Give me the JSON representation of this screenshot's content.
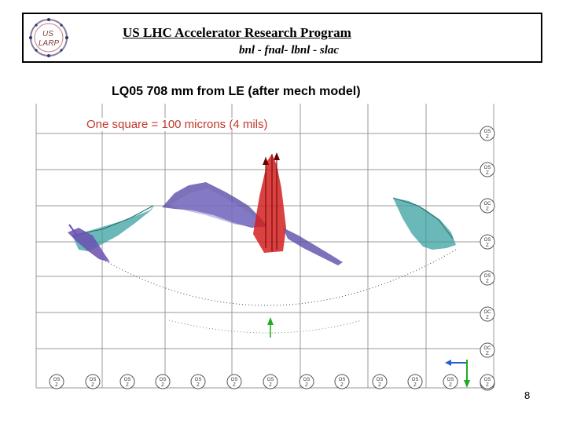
{
  "header": {
    "title": "US LHC Accelerator Research Program",
    "subtitle": "bnl - fnal- lbnl - slac",
    "logo_text_top": "US",
    "logo_text_bottom": "LARP"
  },
  "slide": {
    "title": "LQ05  708 mm from LE (after mech model)",
    "scale_note": "One square = 100 microns (4 mils)",
    "page_number": "8"
  },
  "diagram": {
    "right_markers": [
      "OS Z",
      "OS Z",
      "OC Z",
      "OS Z",
      "OS Z",
      "OC Z",
      "OC Z",
      "OS Z"
    ],
    "bottom_markers": [
      "OS Z",
      "OS Z",
      "OS Z",
      "OS Z",
      "OS Z",
      "OS Z",
      "OS Z",
      "OS Z",
      "OS Z",
      "OS Z",
      "OS Z",
      "OS Z",
      "OS Z"
    ],
    "colors": {
      "teal": "#3aa0a0",
      "purple": "#5b4fa8",
      "red": "#d42020",
      "green": "#22aa22",
      "blue": "#2a5fd0",
      "grid": "#999999"
    }
  }
}
